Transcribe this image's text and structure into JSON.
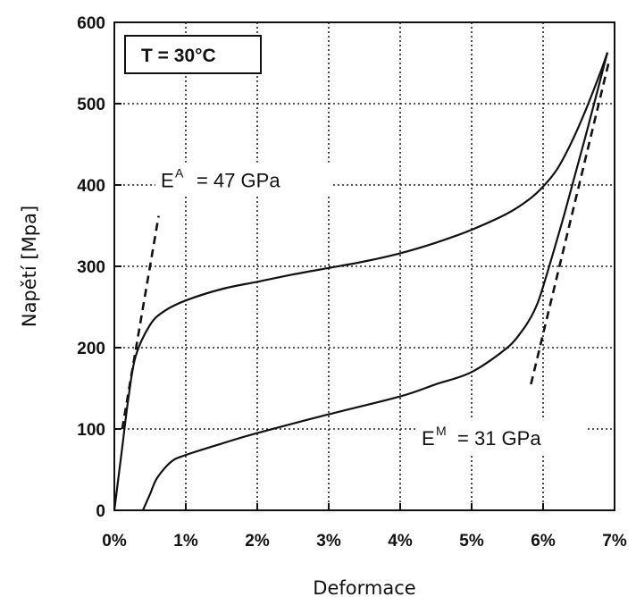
{
  "chart_data": {
    "type": "line",
    "xlabel": "Deformace",
    "ylabel": "Napětí [Mpa]",
    "xlim": [
      0,
      7
    ],
    "ylim": [
      0,
      600
    ],
    "x_ticks": [
      "0%",
      "1%",
      "2%",
      "3%",
      "4%",
      "5%",
      "6%",
      "7%"
    ],
    "y_ticks": [
      "0",
      "100",
      "200",
      "300",
      "400",
      "500",
      "600"
    ],
    "x_tick_values": [
      0,
      1,
      2,
      3,
      4,
      5,
      6,
      7
    ],
    "y_tick_values": [
      0,
      100,
      200,
      300,
      400,
      500,
      600
    ],
    "grid": true,
    "series": [
      {
        "style": "solid",
        "x": [
          0,
          0.1,
          0.2,
          0.3,
          0.5,
          0.7,
          1.0,
          1.5,
          2.0,
          2.5,
          3.0,
          3.5,
          4.0,
          4.5,
          5.0,
          5.5,
          5.8,
          6.0,
          6.2,
          6.4,
          6.6,
          6.8,
          6.9
        ],
        "y": [
          0,
          70,
          140,
          190,
          228,
          245,
          258,
          272,
          281,
          290,
          298,
          306,
          316,
          329,
          345,
          365,
          382,
          398,
          420,
          453,
          493,
          538,
          563
        ]
      },
      {
        "style": "solid",
        "x": [
          6.9,
          6.6,
          6.3,
          6.0,
          5.9,
          5.8,
          5.7,
          5.5,
          5.0,
          4.5,
          4.0,
          3.0,
          2.0,
          1.5,
          1.0,
          0.8,
          0.6,
          0.5,
          0.4
        ],
        "y": [
          563,
          462,
          365,
          275,
          250,
          233,
          220,
          200,
          170,
          155,
          140,
          118,
          95,
          82,
          68,
          60,
          40,
          20,
          0
        ]
      },
      {
        "style": "dashed",
        "x": [
          0.11,
          0.62
        ],
        "y": [
          100,
          362
        ]
      },
      {
        "style": "dashed",
        "x": [
          5.83,
          6.93
        ],
        "y": [
          155,
          555
        ]
      }
    ],
    "annotations": [
      {
        "text_main": "E",
        "text_sup": "A",
        "text_rest": "= 47 GPa",
        "x": 0.65,
        "y": 397
      },
      {
        "text_main": "E",
        "text_sup": "M",
        "text_rest": "= 31 GPa",
        "x": 4.3,
        "y": 80
      }
    ],
    "legend_box": {
      "text": "T = 30°C",
      "placement": "top-left"
    }
  }
}
